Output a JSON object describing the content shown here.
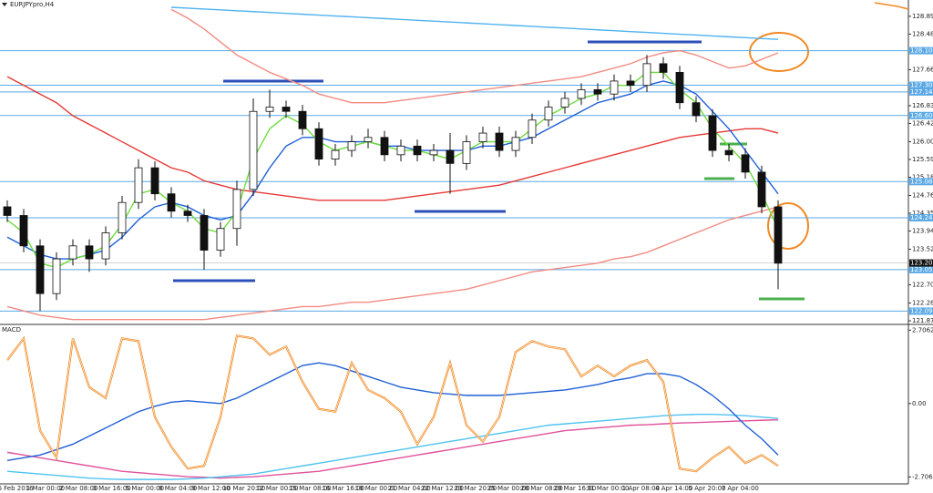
{
  "chart_data": [
    {
      "type": "candlestick",
      "title": "EURJPYpro,H4",
      "ylim": [
        121.81,
        129.1
      ],
      "yticks": [
        128.892,
        128.482,
        127.662,
        126.832,
        126.422,
        126.002,
        125.592,
        125.182,
        124.762,
        124.352,
        123.942,
        123.522,
        122.702,
        122.282,
        121.872
      ],
      "xtick_labels": [
        "6 Feb 2016",
        "1 Mar 00:00",
        "2 Mar 08:00",
        "3 Mar 16:00",
        "5 Mar 00:00",
        "8 Mar 04:00",
        "9 Mar 12:00",
        "10 Mar 20:00",
        "12 Mar 00:00",
        "15 Mar 08:00",
        "16 Mar 16:00",
        "18 Mar 00:00",
        "21 Mar 04:00",
        "22 Mar 12:00",
        "23 Mar 20:00",
        "25 Mar 00:00",
        "28 Mar 08:00",
        "29 Mar 16:00",
        "31 Mar 00:00",
        "1 Apr 08:00",
        "4 Apr 14:00",
        "5 Apr 20:00",
        "7 Apr 04:00"
      ],
      "levels": [
        {
          "value": 128.1,
          "label": "128.100"
        },
        127.303,
        127.148,
        126.605,
        125.081,
        124.248,
        123.052,
        122.095
      ],
      "level_color": "#5aa9e6",
      "last_price": 123.206,
      "open": [
        124.5,
        124.3,
        123.6,
        122.5,
        123.3,
        123.6,
        123.3,
        123.9,
        124.6,
        125.4,
        124.8,
        124.4,
        124.3,
        123.5,
        124.0,
        124.9,
        126.7,
        126.8,
        126.7,
        126.3,
        125.6,
        125.8,
        126.0,
        126.1,
        125.7,
        125.9,
        125.7,
        125.8,
        125.5,
        126.0,
        126.2,
        125.8,
        126.1,
        126.5,
        126.8,
        127.0,
        127.2,
        127.1,
        127.4,
        127.3,
        127.8,
        127.6,
        126.9,
        126.6,
        125.8,
        125.7,
        125.3,
        124.5
      ],
      "high": [
        124.65,
        124.45,
        123.75,
        123.45,
        123.75,
        123.75,
        124.05,
        124.75,
        125.6,
        125.55,
        124.95,
        124.55,
        124.45,
        124.15,
        125.1,
        127.0,
        127.2,
        126.95,
        126.85,
        126.45,
        125.95,
        126.15,
        126.3,
        126.25,
        126.05,
        126.05,
        125.95,
        126.2,
        126.15,
        126.35,
        126.35,
        126.25,
        126.65,
        126.95,
        127.15,
        127.35,
        127.35,
        127.55,
        127.55,
        128.0,
        127.95,
        127.75,
        127.05,
        126.75,
        125.95,
        125.85,
        125.45,
        124.65
      ],
      "low": [
        124.15,
        123.45,
        122.1,
        122.35,
        123.15,
        123.0,
        123.15,
        123.75,
        124.45,
        124.65,
        124.25,
        124.15,
        123.05,
        123.35,
        123.6,
        124.75,
        126.55,
        126.55,
        126.15,
        125.45,
        125.45,
        125.65,
        125.85,
        125.55,
        125.55,
        125.55,
        125.55,
        124.8,
        125.35,
        125.85,
        125.65,
        125.65,
        125.95,
        126.35,
        126.65,
        126.85,
        126.95,
        126.95,
        127.15,
        127.15,
        127.45,
        126.75,
        126.45,
        125.65,
        125.55,
        125.15,
        124.35,
        122.6
      ],
      "close": [
        124.3,
        123.6,
        122.5,
        123.3,
        123.6,
        123.3,
        123.9,
        124.6,
        125.4,
        124.8,
        124.4,
        124.3,
        123.5,
        124.0,
        124.9,
        126.7,
        126.8,
        126.7,
        126.3,
        125.6,
        125.8,
        126.0,
        126.1,
        125.7,
        125.9,
        125.7,
        125.8,
        125.5,
        126.0,
        126.2,
        125.8,
        126.1,
        126.5,
        126.8,
        127.0,
        127.2,
        127.1,
        127.4,
        127.3,
        127.8,
        127.6,
        126.9,
        126.6,
        125.8,
        125.7,
        125.3,
        124.5,
        123.2
      ],
      "series": [
        {
          "color": "#f28b82",
          "values": [
            null,
            null,
            null,
            null,
            null,
            null,
            null,
            null,
            null,
            null,
            129.05,
            128.85,
            128.6,
            128.3,
            128.0,
            127.8,
            127.6,
            127.45,
            127.3,
            127.1,
            127.0,
            126.9,
            126.9,
            126.9,
            126.95,
            127.0,
            127.05,
            127.1,
            127.15,
            127.2,
            127.25,
            127.3,
            127.35,
            127.4,
            127.45,
            127.5,
            127.6,
            127.7,
            127.8,
            127.95,
            128.05,
            128.1,
            128.0,
            127.85,
            127.7,
            127.75,
            127.9,
            128.05
          ]
        },
        {
          "color": "#f28b82",
          "values": [
            122.2,
            122.1,
            122.0,
            121.95,
            121.9,
            121.9,
            121.9,
            121.9,
            121.9,
            121.9,
            121.9,
            121.9,
            121.9,
            121.95,
            122.0,
            122.05,
            122.1,
            122.15,
            122.2,
            122.2,
            122.25,
            122.3,
            122.3,
            122.35,
            122.4,
            122.45,
            122.5,
            122.55,
            122.6,
            122.7,
            122.8,
            122.9,
            123.0,
            123.05,
            123.1,
            123.15,
            123.2,
            123.3,
            123.35,
            123.45,
            123.6,
            123.75,
            123.9,
            124.05,
            124.2,
            124.3,
            124.4,
            124.5
          ]
        },
        {
          "color": "#e53935",
          "values": [
            127.5,
            127.3,
            127.1,
            126.9,
            126.6,
            126.4,
            126.2,
            126.0,
            125.8,
            125.6,
            125.4,
            125.3,
            125.1,
            125.0,
            124.9,
            124.85,
            124.8,
            124.75,
            124.7,
            124.65,
            124.65,
            124.65,
            124.65,
            124.65,
            124.7,
            124.75,
            124.8,
            124.85,
            124.9,
            124.95,
            125.0,
            125.1,
            125.2,
            125.3,
            125.4,
            125.5,
            125.6,
            125.7,
            125.8,
            125.9,
            126.0,
            126.1,
            126.15,
            126.2,
            126.25,
            126.3,
            126.3,
            126.2
          ]
        },
        {
          "color": "#1f5fd6",
          "values": [
            123.8,
            123.6,
            123.4,
            123.3,
            123.3,
            123.4,
            123.5,
            123.8,
            124.2,
            124.5,
            124.6,
            124.5,
            124.3,
            124.2,
            124.3,
            124.8,
            125.4,
            125.9,
            126.1,
            126.1,
            126.0,
            126.0,
            126.0,
            125.9,
            125.9,
            125.8,
            125.8,
            125.8,
            125.8,
            125.9,
            125.9,
            126.0,
            126.1,
            126.3,
            126.5,
            126.7,
            126.9,
            127.0,
            127.1,
            127.3,
            127.4,
            127.3,
            127.1,
            126.7,
            126.3,
            125.8,
            125.3,
            124.8
          ]
        },
        {
          "color": "#6ddc3c",
          "values": [
            124.2,
            123.9,
            123.2,
            123.1,
            123.3,
            123.4,
            123.6,
            124.1,
            124.8,
            124.9,
            124.6,
            124.4,
            124.0,
            123.9,
            124.4,
            125.6,
            126.3,
            126.6,
            126.4,
            126.0,
            125.8,
            125.9,
            126.0,
            125.9,
            125.8,
            125.8,
            125.7,
            125.6,
            125.8,
            126.0,
            126.0,
            126.0,
            126.3,
            126.6,
            126.8,
            127.0,
            127.1,
            127.3,
            127.3,
            127.6,
            127.6,
            127.2,
            126.9,
            126.3,
            125.9,
            125.5,
            124.8,
            124.0
          ]
        },
        {
          "color": "#4fb3ef",
          "values": [
            null,
            null,
            null,
            null,
            null,
            null,
            null,
            null,
            null,
            null,
            129.1,
            129.08,
            129.06,
            129.04,
            129.02,
            129.0,
            128.98,
            128.96,
            128.94,
            128.92,
            128.9,
            128.88,
            128.86,
            128.84,
            128.82,
            128.8,
            128.78,
            128.76,
            128.74,
            128.72,
            128.7,
            128.68,
            128.66,
            128.64,
            128.62,
            128.6,
            128.58,
            128.56,
            128.54,
            128.52,
            128.5,
            128.48,
            128.46,
            128.44,
            128.42,
            128.4,
            128.38,
            128.36
          ]
        }
      ]
    },
    {
      "type": "line",
      "title": "MACD",
      "ylim": [
        -2.93,
        2.85
      ],
      "yticks": [
        2.7062,
        {
          "value": 0,
          "label": "0.00"
        },
        -2.7062
      ],
      "series": [
        {
          "color": "#e0529c",
          "values": [
            -1.8,
            -1.9,
            -2.0,
            -2.1,
            -2.2,
            -2.3,
            -2.4,
            -2.5,
            -2.55,
            -2.6,
            -2.65,
            -2.7,
            -2.72,
            -2.75,
            -2.72,
            -2.7,
            -2.65,
            -2.6,
            -2.55,
            -2.5,
            -2.4,
            -2.3,
            -2.2,
            -2.1,
            -2.0,
            -1.9,
            -1.8,
            -1.7,
            -1.6,
            -1.5,
            -1.4,
            -1.3,
            -1.2,
            -1.1,
            -1.0,
            -0.95,
            -0.9,
            -0.85,
            -0.8,
            -0.78,
            -0.75,
            -0.72,
            -0.7,
            -0.68,
            -0.66,
            -0.64,
            -0.62,
            -0.6
          ]
        },
        {
          "color": "#4fc3ef",
          "values": [
            -2.5,
            -2.55,
            -2.6,
            -2.65,
            -2.7,
            -2.75,
            -2.78,
            -2.8,
            -2.8,
            -2.8,
            -2.8,
            -2.78,
            -2.75,
            -2.7,
            -2.65,
            -2.6,
            -2.5,
            -2.4,
            -2.3,
            -2.2,
            -2.1,
            -2.0,
            -1.9,
            -1.8,
            -1.7,
            -1.6,
            -1.5,
            -1.4,
            -1.3,
            -1.2,
            -1.1,
            -1.0,
            -0.9,
            -0.8,
            -0.75,
            -0.7,
            -0.65,
            -0.6,
            -0.55,
            -0.5,
            -0.45,
            -0.42,
            -0.4,
            -0.4,
            -0.42,
            -0.45,
            -0.5,
            -0.55
          ]
        },
        {
          "color": "#1f5fd6",
          "values": [
            -2.1,
            -2.0,
            -1.9,
            -1.7,
            -1.5,
            -1.2,
            -0.9,
            -0.6,
            -0.3,
            -0.1,
            0.05,
            0.1,
            0.05,
            0.0,
            0.2,
            0.5,
            0.8,
            1.1,
            1.4,
            1.5,
            1.4,
            1.2,
            1.0,
            0.8,
            0.6,
            0.5,
            0.4,
            0.35,
            0.3,
            0.3,
            0.3,
            0.35,
            0.4,
            0.45,
            0.5,
            0.6,
            0.7,
            0.85,
            0.95,
            1.1,
            1.1,
            1.0,
            0.7,
            0.3,
            -0.2,
            -0.8,
            -1.3,
            -1.9
          ]
        },
        {
          "color": "#f08a24",
          "values": [
            1.6,
            2.4,
            -1.0,
            -2.0,
            2.4,
            0.6,
            0.2,
            2.4,
            2.3,
            -0.5,
            -1.6,
            -2.4,
            -2.3,
            -0.5,
            2.5,
            2.4,
            1.8,
            2.1,
            0.8,
            -0.2,
            -0.3,
            1.5,
            0.5,
            0.2,
            -0.3,
            -1.5,
            -0.5,
            1.5,
            -0.8,
            -1.4,
            -0.5,
            1.9,
            2.3,
            2.1,
            2.0,
            1.0,
            1.4,
            1.0,
            1.4,
            1.6,
            0.8,
            -2.4,
            -2.5,
            -2.0,
            -1.6,
            -2.2,
            -1.9,
            -2.3
          ]
        }
      ]
    }
  ]
}
